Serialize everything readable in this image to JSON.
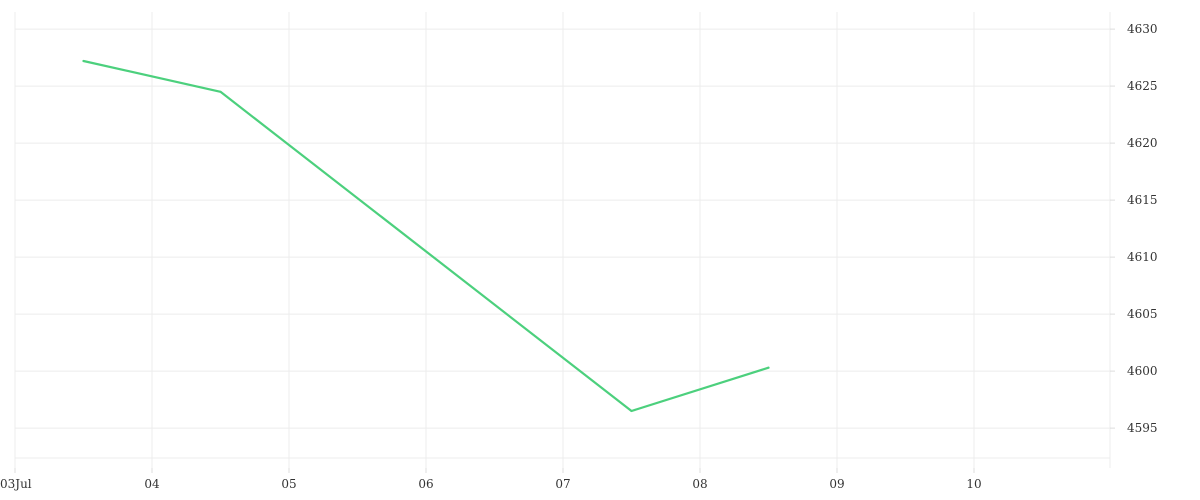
{
  "chart_data": {
    "type": "line",
    "title": "",
    "xlabel": "",
    "ylabel": "",
    "x_ticks": [
      "03Jul",
      "04",
      "05",
      "06",
      "07",
      "08",
      "09",
      "10"
    ],
    "y_ticks": [
      "4595",
      "4600",
      "4605",
      "4610",
      "4615",
      "4620",
      "4625",
      "4630"
    ],
    "ylim": [
      4591.5,
      4631.5
    ],
    "grid": true,
    "legend": "none",
    "y_axis_side": "right",
    "series": [
      {
        "color": "#4cd07d",
        "points": [
          {
            "x": "2023-07-03T12:00",
            "y": 4627.2
          },
          {
            "x": "2023-07-04T12:00",
            "y": 4624.5
          },
          {
            "x": "2023-07-07T12:00",
            "y": 4596.5
          },
          {
            "x": "2023-07-08T12:00",
            "y": 4600.3
          }
        ]
      }
    ]
  }
}
